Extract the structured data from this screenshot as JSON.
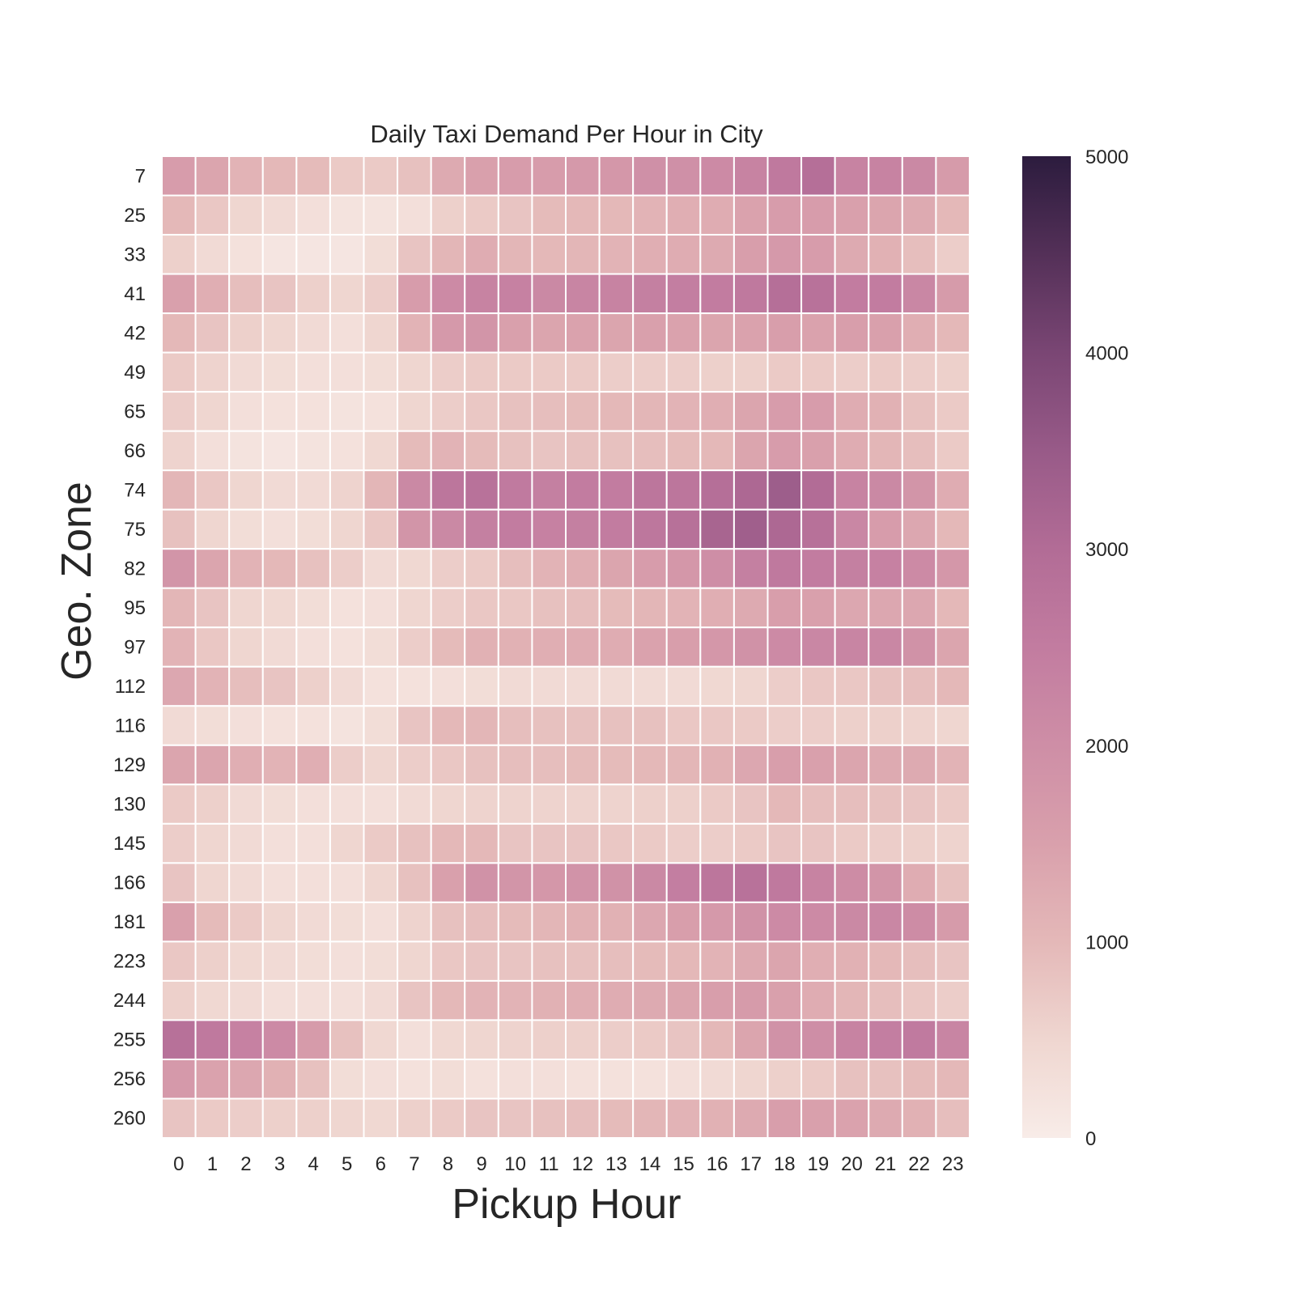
{
  "chart_data": {
    "type": "heatmap",
    "title": "Daily Taxi Demand Per Hour in City",
    "xlabel": "Pickup Hour",
    "ylabel": "Geo. Zone",
    "x": [
      "0",
      "1",
      "2",
      "3",
      "4",
      "5",
      "6",
      "7",
      "8",
      "9",
      "10",
      "11",
      "12",
      "13",
      "14",
      "15",
      "16",
      "17",
      "18",
      "19",
      "20",
      "21",
      "22",
      "23"
    ],
    "y": [
      "7",
      "25",
      "33",
      "41",
      "42",
      "49",
      "65",
      "66",
      "74",
      "75",
      "82",
      "95",
      "97",
      "112",
      "116",
      "129",
      "130",
      "145",
      "166",
      "181",
      "223",
      "244",
      "255",
      "256",
      "260"
    ],
    "values": [
      [
        1600,
        1400,
        1100,
        1000,
        950,
        700,
        700,
        850,
        1300,
        1500,
        1600,
        1600,
        1700,
        1750,
        1950,
        1950,
        2100,
        2300,
        2600,
        2900,
        2300,
        2300,
        2150,
        1650
      ],
      [
        1000,
        750,
        500,
        400,
        300,
        200,
        200,
        300,
        600,
        700,
        800,
        950,
        1000,
        1000,
        1100,
        1200,
        1250,
        1450,
        1600,
        1600,
        1500,
        1400,
        1300,
        1000
      ],
      [
        600,
        400,
        250,
        150,
        150,
        150,
        350,
        800,
        1050,
        1250,
        1050,
        1000,
        1050,
        1100,
        1200,
        1250,
        1300,
        1550,
        1700,
        1600,
        1300,
        1150,
        900,
        650
      ],
      [
        1500,
        1200,
        900,
        800,
        600,
        500,
        650,
        1600,
        2100,
        2300,
        2350,
        2150,
        2250,
        2300,
        2400,
        2450,
        2500,
        2600,
        2900,
        2800,
        2500,
        2500,
        2200,
        1650
      ],
      [
        1000,
        800,
        600,
        500,
        400,
        300,
        500,
        1100,
        1700,
        1800,
        1500,
        1400,
        1450,
        1400,
        1500,
        1450,
        1400,
        1450,
        1550,
        1450,
        1550,
        1500,
        1200,
        1000
      ],
      [
        700,
        550,
        400,
        350,
        300,
        300,
        350,
        500,
        650,
        700,
        700,
        700,
        700,
        650,
        650,
        650,
        600,
        600,
        700,
        700,
        650,
        700,
        650,
        600
      ],
      [
        650,
        500,
        300,
        250,
        250,
        200,
        250,
        500,
        650,
        750,
        850,
        900,
        950,
        1000,
        1050,
        1100,
        1200,
        1400,
        1600,
        1600,
        1250,
        1150,
        850,
        700
      ],
      [
        550,
        300,
        200,
        150,
        200,
        250,
        450,
        950,
        1100,
        950,
        850,
        800,
        850,
        850,
        900,
        950,
        1000,
        1400,
        1600,
        1500,
        1250,
        1050,
        900,
        700
      ],
      [
        1050,
        750,
        500,
        400,
        400,
        550,
        1050,
        2150,
        2700,
        2800,
        2550,
        2400,
        2500,
        2500,
        2700,
        2700,
        2900,
        3100,
        3400,
        3000,
        2300,
        2150,
        1800,
        1250
      ],
      [
        850,
        500,
        350,
        300,
        350,
        500,
        750,
        1800,
        2150,
        2400,
        2500,
        2350,
        2400,
        2500,
        2650,
        2850,
        3200,
        3350,
        3100,
        2850,
        2200,
        1600,
        1350,
        1000
      ],
      [
        1800,
        1400,
        1100,
        1000,
        850,
        650,
        400,
        450,
        650,
        700,
        900,
        1100,
        1200,
        1400,
        1600,
        1750,
        2000,
        2400,
        2600,
        2500,
        2400,
        2350,
        2100,
        1750
      ],
      [
        1050,
        800,
        500,
        450,
        350,
        250,
        300,
        500,
        650,
        750,
        750,
        850,
        900,
        950,
        1050,
        1100,
        1200,
        1300,
        1550,
        1500,
        1350,
        1350,
        1350,
        1000
      ],
      [
        1100,
        750,
        500,
        400,
        300,
        250,
        350,
        650,
        950,
        1150,
        1150,
        1200,
        1250,
        1250,
        1450,
        1550,
        1750,
        1900,
        2100,
        2200,
        2250,
        2200,
        1900,
        1400
      ],
      [
        1350,
        1100,
        900,
        800,
        600,
        400,
        250,
        250,
        300,
        350,
        400,
        400,
        400,
        400,
        400,
        400,
        450,
        500,
        650,
        750,
        750,
        850,
        900,
        1000
      ],
      [
        400,
        350,
        300,
        250,
        250,
        200,
        350,
        800,
        1000,
        1050,
        900,
        850,
        850,
        850,
        850,
        750,
        750,
        700,
        650,
        650,
        600,
        600,
        550,
        500
      ],
      [
        1400,
        1400,
        1200,
        1100,
        1200,
        650,
        500,
        650,
        750,
        850,
        900,
        900,
        950,
        950,
        1000,
        1050,
        1150,
        1350,
        1550,
        1500,
        1400,
        1300,
        1300,
        1100
      ],
      [
        700,
        600,
        400,
        350,
        300,
        300,
        300,
        400,
        500,
        550,
        550,
        550,
        550,
        550,
        600,
        600,
        700,
        800,
        1000,
        900,
        900,
        850,
        800,
        700
      ],
      [
        650,
        500,
        400,
        300,
        300,
        500,
        700,
        850,
        1000,
        1000,
        800,
        800,
        800,
        750,
        700,
        650,
        650,
        700,
        800,
        800,
        700,
        650,
        600,
        550
      ],
      [
        800,
        500,
        400,
        300,
        300,
        300,
        500,
        850,
        1500,
        1900,
        1800,
        1750,
        1850,
        1900,
        2150,
        2450,
        2700,
        2800,
        2600,
        2300,
        2050,
        1800,
        1250,
        850
      ],
      [
        1500,
        950,
        700,
        500,
        400,
        350,
        300,
        550,
        850,
        900,
        950,
        1050,
        1150,
        1150,
        1350,
        1550,
        1700,
        1900,
        2100,
        2100,
        2150,
        2200,
        2050,
        1650
      ],
      [
        750,
        600,
        450,
        400,
        350,
        300,
        350,
        500,
        750,
        800,
        800,
        850,
        850,
        900,
        950,
        1000,
        1100,
        1300,
        1400,
        1200,
        1150,
        1000,
        900,
        800
      ],
      [
        600,
        450,
        400,
        300,
        300,
        300,
        400,
        800,
        1000,
        1100,
        1100,
        1150,
        1200,
        1250,
        1300,
        1400,
        1550,
        1650,
        1500,
        1250,
        1050,
        900,
        750,
        650
      ],
      [
        2850,
        2600,
        2350,
        2100,
        1650,
        850,
        450,
        300,
        450,
        500,
        550,
        600,
        600,
        650,
        700,
        800,
        1000,
        1400,
        1900,
        2000,
        2300,
        2450,
        2550,
        2250
      ],
      [
        1700,
        1450,
        1350,
        1150,
        850,
        350,
        300,
        250,
        350,
        250,
        300,
        300,
        250,
        250,
        250,
        300,
        400,
        500,
        600,
        700,
        850,
        850,
        950,
        1000
      ],
      [
        800,
        700,
        650,
        600,
        600,
        500,
        450,
        600,
        700,
        800,
        800,
        850,
        900,
        950,
        1050,
        1100,
        1150,
        1300,
        1550,
        1500,
        1450,
        1300,
        1150,
        900
      ]
    ],
    "colorbar": {
      "min": 0,
      "max": 5000,
      "ticks": [
        "0",
        "1000",
        "2000",
        "3000",
        "4000",
        "5000"
      ]
    },
    "colormap": "cubehelix-light (#f8ece8 → #2b1b3e)",
    "grid": false,
    "legend": "colorbar-right"
  }
}
